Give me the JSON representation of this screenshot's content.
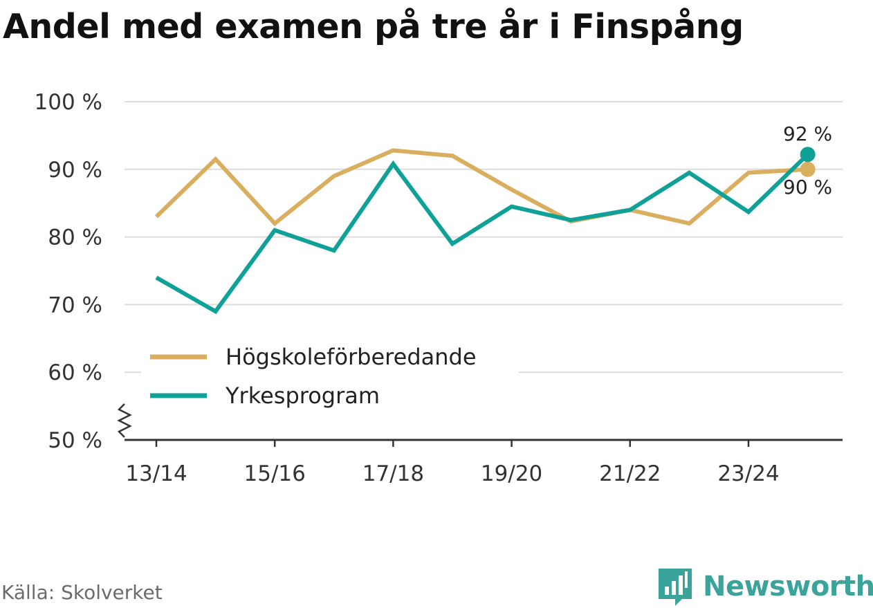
{
  "title": "Andel med examen på tre år i Finspång",
  "source": "Källa: Skolverket",
  "brand": {
    "name": "Newsworthy",
    "icon": "newsworthy-logo-icon",
    "color": "#3aa39a"
  },
  "chart_data": {
    "type": "line",
    "title": "Andel med examen på tre år i Finspång",
    "xlabel": "",
    "ylabel": "",
    "categories": [
      "13/14",
      "14/15",
      "15/16",
      "16/17",
      "17/18",
      "18/19",
      "19/20",
      "20/21",
      "21/22",
      "22/23",
      "23/24",
      "24/25"
    ],
    "x_tick_labels": [
      "13/14",
      "15/16",
      "17/18",
      "19/20",
      "21/22",
      "23/24"
    ],
    "y_ticks": [
      50,
      60,
      70,
      80,
      90,
      100
    ],
    "y_tick_labels": [
      "50 %",
      "60 %",
      "70 %",
      "80 %",
      "90 %",
      "100 %"
    ],
    "ylim": [
      50,
      100
    ],
    "axis_break": true,
    "grid": true,
    "legend_position": "bottom-left",
    "series": [
      {
        "name": "Högskoleförberedande",
        "color": "#d9ae5f",
        "values": [
          83,
          91.5,
          82,
          89,
          92.8,
          92,
          87,
          82.3,
          84,
          82,
          89.5,
          90
        ],
        "end_label": "90 %"
      },
      {
        "name": "Yrkesprogram",
        "color": "#0fa197",
        "values": [
          74,
          69,
          81,
          78,
          90.8,
          79,
          84.5,
          82.5,
          84,
          89.5,
          83.7,
          92.2
        ],
        "end_label": "92 %"
      }
    ]
  }
}
